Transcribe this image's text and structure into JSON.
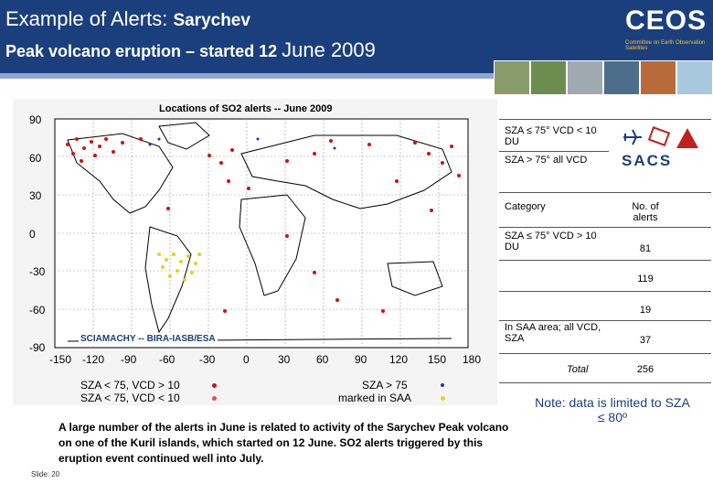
{
  "header": {
    "title_line1_regular": "Example of Alerts:",
    "title_line1_bold": "Sarychev",
    "title_line2_bold": "Peak volcano eruption – started 12",
    "title_line2_regular": "June 2009",
    "logo_text": "CEOS",
    "logo_subtext": "Committee on Earth Observation Satellites"
  },
  "map": {
    "title": "Locations of SO2 alerts -- June 2009",
    "y_ticks": [
      "90",
      "60",
      "30",
      "0",
      "-30",
      "-60",
      "-90"
    ],
    "x_ticks": [
      "-150",
      "-120",
      "-90",
      "-60",
      "-30",
      "0",
      "30",
      "60",
      "90",
      "120",
      "150",
      "180"
    ],
    "credit": "SCIAMACHY -- BIRA-IASB/ESA",
    "legend": [
      {
        "label": "SZA < 75, VCD > 10",
        "color": "#d01010"
      },
      {
        "label": "SZA < 75, VCD < 10",
        "color": "#e05050"
      },
      {
        "label": "SZA > 75",
        "color": "#2030c0"
      },
      {
        "label": "marked in SAA",
        "color": "#e8d020"
      }
    ]
  },
  "table": {
    "row_a": "SZA ≤ 75° VCD < 10 DU",
    "row_b": "SZA > 75° all VCD",
    "header_category": "Category",
    "header_count": "No. of alerts",
    "row1_category": "SZA ≤ 75° VCD > 10 DU",
    "row1_count": "81",
    "row2_count": "119",
    "row3_count": "19",
    "row4_category": "In SAA area; all VCD, SZA",
    "row4_count": "37",
    "total_label": "Total",
    "total_count": "256"
  },
  "sacs_logo": "SACS",
  "caption": "A large number of the alerts in June is related to activity of the Sarychev Peak volcano on one of the Kuril islands, which started on 12 June. SO2 alerts triggered by this eruption event continued well into July.",
  "note": "Note: data is limited to SZA ≤ 80º",
  "slide_label": "Slide: 20"
}
